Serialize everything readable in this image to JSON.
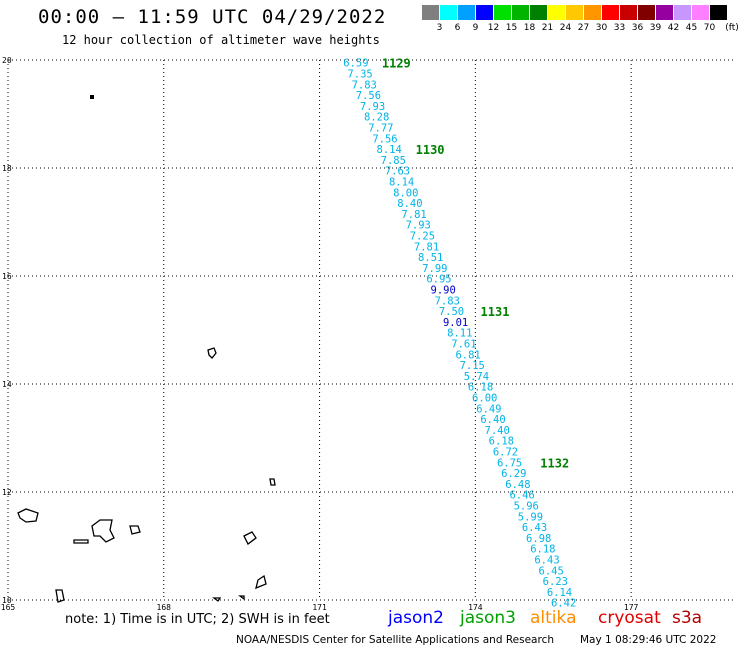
{
  "header": {
    "title": "00:00 – 11:59 UTC 04/29/2022",
    "subtitle": "12 hour collection of altimeter wave heights"
  },
  "legend": {
    "unit": "(ft)",
    "bins": [
      {
        "label": "3",
        "color": "#7f7f7f"
      },
      {
        "label": "6",
        "color": "#00ffff"
      },
      {
        "label": "9",
        "color": "#00a0ff"
      },
      {
        "label": "12",
        "color": "#0000ff"
      },
      {
        "label": "15",
        "color": "#00e000"
      },
      {
        "label": "18",
        "color": "#00b400"
      },
      {
        "label": "21",
        "color": "#008000"
      },
      {
        "label": "24",
        "color": "#ffff00"
      },
      {
        "label": "27",
        "color": "#ffc800"
      },
      {
        "label": "30",
        "color": "#ff9600"
      },
      {
        "label": "33",
        "color": "#ff0000"
      },
      {
        "label": "36",
        "color": "#c80000"
      },
      {
        "label": "39",
        "color": "#800000"
      },
      {
        "label": "42",
        "color": "#9600a0"
      },
      {
        "label": "45",
        "color": "#c896ff"
      },
      {
        "label": "70",
        "color": "#ff80ff"
      },
      {
        "label": "",
        "color": "#000000"
      }
    ]
  },
  "map": {
    "lon_range": [
      165,
      179
    ],
    "lat_range": [
      10,
      20
    ],
    "lon_labels": [
      "165",
      "168",
      "171",
      "174",
      "177"
    ],
    "lat_labels": [
      "20",
      "18",
      "16",
      "14",
      "12",
      "10"
    ],
    "track_color": "#00b4e6",
    "high_color": "#0000c8",
    "time_color": "#008000"
  },
  "chart_data": {
    "type": "scatter",
    "description_units": "SWH in feet along jason2 ground track",
    "points": [
      {
        "lat": 19.95,
        "lon": 171.7,
        "swh": 6.59
      },
      {
        "lat": 19.75,
        "lon": 171.78,
        "swh": 7.35
      },
      {
        "lat": 19.55,
        "lon": 171.86,
        "swh": 7.83
      },
      {
        "lat": 19.35,
        "lon": 171.94,
        "swh": 7.56
      },
      {
        "lat": 19.15,
        "lon": 172.02,
        "swh": 7.93
      },
      {
        "lat": 18.95,
        "lon": 172.1,
        "swh": 8.28
      },
      {
        "lat": 18.75,
        "lon": 172.18,
        "swh": 7.77
      },
      {
        "lat": 18.55,
        "lon": 172.26,
        "swh": 7.56
      },
      {
        "lat": 18.35,
        "lon": 172.34,
        "swh": 8.14
      },
      {
        "lat": 18.15,
        "lon": 172.42,
        "swh": 7.85
      },
      {
        "lat": 17.95,
        "lon": 172.5,
        "swh": 7.63
      },
      {
        "lat": 17.75,
        "lon": 172.58,
        "swh": 8.14
      },
      {
        "lat": 17.55,
        "lon": 172.66,
        "swh": 8.0
      },
      {
        "lat": 17.35,
        "lon": 172.74,
        "swh": 8.4
      },
      {
        "lat": 17.15,
        "lon": 172.82,
        "swh": 7.81
      },
      {
        "lat": 16.95,
        "lon": 172.9,
        "swh": 7.93
      },
      {
        "lat": 16.75,
        "lon": 172.98,
        "swh": 7.25
      },
      {
        "lat": 16.55,
        "lon": 173.06,
        "swh": 7.81
      },
      {
        "lat": 16.35,
        "lon": 173.14,
        "swh": 8.51
      },
      {
        "lat": 16.15,
        "lon": 173.22,
        "swh": 7.99
      },
      {
        "lat": 15.95,
        "lon": 173.3,
        "swh": 6.95
      },
      {
        "lat": 15.75,
        "lon": 173.38,
        "swh": 9.9
      },
      {
        "lat": 15.55,
        "lon": 173.46,
        "swh": 7.83
      },
      {
        "lat": 15.35,
        "lon": 173.54,
        "swh": 7.5
      },
      {
        "lat": 15.15,
        "lon": 173.62,
        "swh": 9.01
      },
      {
        "lat": 14.95,
        "lon": 173.7,
        "swh": 8.11
      },
      {
        "lat": 14.75,
        "lon": 173.78,
        "swh": 7.61
      },
      {
        "lat": 14.55,
        "lon": 173.86,
        "swh": 6.81
      },
      {
        "lat": 14.35,
        "lon": 173.94,
        "swh": 7.15
      },
      {
        "lat": 14.15,
        "lon": 174.02,
        "swh": 5.74
      },
      {
        "lat": 13.95,
        "lon": 174.1,
        "swh": 6.18
      },
      {
        "lat": 13.75,
        "lon": 174.18,
        "swh": 6.0
      },
      {
        "lat": 13.55,
        "lon": 174.26,
        "swh": 6.49
      },
      {
        "lat": 13.35,
        "lon": 174.34,
        "swh": 6.4
      },
      {
        "lat": 13.15,
        "lon": 174.42,
        "swh": 7.4
      },
      {
        "lat": 12.95,
        "lon": 174.5,
        "swh": 6.18
      },
      {
        "lat": 12.75,
        "lon": 174.58,
        "swh": 6.72
      },
      {
        "lat": 12.55,
        "lon": 174.66,
        "swh": 6.75
      },
      {
        "lat": 12.35,
        "lon": 174.74,
        "swh": 6.29
      },
      {
        "lat": 12.15,
        "lon": 174.82,
        "swh": 6.48
      },
      {
        "lat": 11.95,
        "lon": 174.9,
        "swh": 6.46
      },
      {
        "lat": 11.75,
        "lon": 174.98,
        "swh": 5.96
      },
      {
        "lat": 11.55,
        "lon": 175.06,
        "swh": 5.99
      },
      {
        "lat": 11.35,
        "lon": 175.14,
        "swh": 6.43
      },
      {
        "lat": 11.15,
        "lon": 175.22,
        "swh": 6.98
      },
      {
        "lat": 10.95,
        "lon": 175.3,
        "swh": 6.18
      },
      {
        "lat": 10.75,
        "lon": 175.38,
        "swh": 6.43
      },
      {
        "lat": 10.55,
        "lon": 175.46,
        "swh": 6.45
      },
      {
        "lat": 10.35,
        "lon": 175.54,
        "swh": 6.23
      },
      {
        "lat": 10.15,
        "lon": 175.62,
        "swh": 6.14
      },
      {
        "lat": 9.95,
        "lon": 175.7,
        "swh": 6.42
      }
    ],
    "time_labels": [
      {
        "lat": 19.95,
        "lon": 172.2,
        "text": "1129"
      },
      {
        "lat": 18.35,
        "lon": 172.85,
        "text": "1130"
      },
      {
        "lat": 15.35,
        "lon": 174.1,
        "text": "1131"
      },
      {
        "lat": 12.55,
        "lon": 175.25,
        "text": "1132"
      }
    ]
  },
  "footer": {
    "note": "note:  1) Time is in UTC;  2) SWH is in feet",
    "satellites": [
      {
        "name": "jason2",
        "color": "#0000ff"
      },
      {
        "name": "jason3",
        "color": "#00a000"
      },
      {
        "name": "altika",
        "color": "#ff8c00"
      },
      {
        "name": "cryosat",
        "color": "#e00000"
      },
      {
        "name": "s3a",
        "color": "#b40000"
      }
    ],
    "credit": "NOAA/NESDIS Center for Satellite Applications and Research",
    "timestamp": "May  1 08:29:46 UTC 2022"
  }
}
